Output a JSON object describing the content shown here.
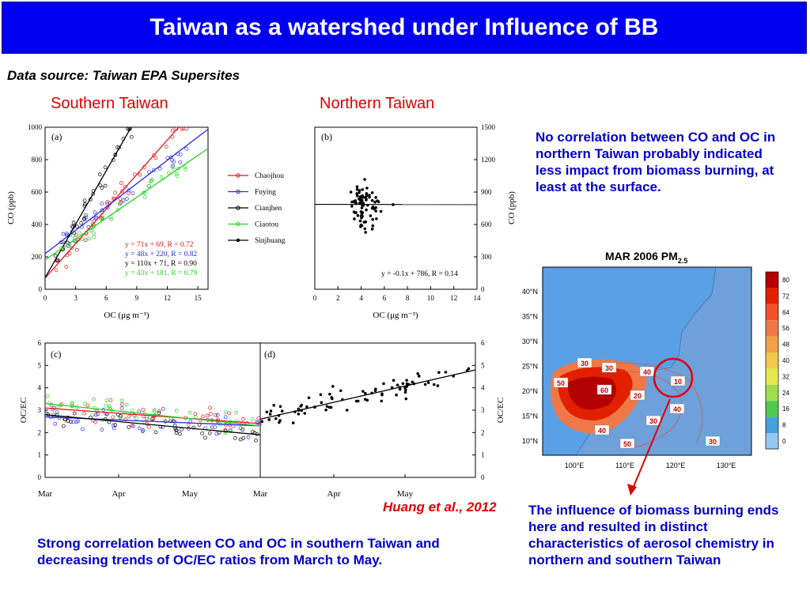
{
  "slide": {
    "title": "Taiwan as a watershed under Influence of BB",
    "data_source": "Data source: Taiwan EPA Supersites",
    "south_label": "Southern Taiwan",
    "north_label": "Northern Taiwan",
    "note_north": "No correlation between CO and OC in northern Taiwan probably indicated less impact from biomass burning, at least at the surface.",
    "note_south": "Strong correlation between CO and OC in southern Taiwan and decreasing trends of OC/EC ratios from March to May.",
    "note_bb": "The influence of biomass burning ends here and resulted in distinct characteristics of aerosol chemistry in northern and southern Taiwan",
    "citation": "Huang et al., 2012"
  },
  "colors": {
    "title_bg": "#0000f0",
    "red": "#e00000",
    "blue_text": "#0000cc",
    "chaojhou": "#e8141c",
    "fuying": "#2828e6",
    "cianjhen": "#000000",
    "ciaotou": "#28d228",
    "sinjhuang": "#000000"
  },
  "chart_data": [
    {
      "panel_label": "(a)",
      "type": "scatter",
      "xlabel": "OC  (μg m⁻³)",
      "ylabel": "CO  (ppb)",
      "xlim": [
        0,
        16
      ],
      "ylim": [
        0,
        1000
      ],
      "xticks": [
        "0",
        "3",
        "6",
        "9",
        "12",
        "15"
      ],
      "yticks": [
        "0",
        "200",
        "400",
        "600",
        "800",
        "1000"
      ],
      "legend": [
        "Chaojhou",
        "Fuying",
        "Cianjhen",
        "Ciaotou",
        "Sinjhuang"
      ],
      "legend_placement": "right",
      "fits": [
        {
          "series": "Chaojhou",
          "label": "y = 71x + 69, R = 0.72",
          "slope": 71,
          "intercept": 69
        },
        {
          "series": "Fuying",
          "label": "y = 48x + 220, R = 0.82",
          "slope": 48,
          "intercept": 220
        },
        {
          "series": "Cianjhen",
          "label": "y = 110x + 71, R = 0.90",
          "slope": 110,
          "intercept": 71
        },
        {
          "series": "Ciaotou",
          "label": "y = 43x + 181, R = 0.79",
          "slope": 43,
          "intercept": 181
        }
      ]
    },
    {
      "panel_label": "(b)",
      "type": "scatter",
      "xlabel": "OC  (μg m⁻³)",
      "ylabel": "CO  (ppb)",
      "xlim": [
        0,
        14
      ],
      "ylim": [
        0,
        1500
      ],
      "xticks": [
        "0",
        "2",
        "4",
        "6",
        "8",
        "10",
        "12",
        "14"
      ],
      "yticks": [
        "0",
        "300",
        "600",
        "900",
        "1200",
        "1500"
      ],
      "fits": [
        {
          "series": "Sinjhuang",
          "label": "y = -0.1x + 786, R = 0.14",
          "slope": -0.1,
          "intercept": 786
        }
      ]
    },
    {
      "panel_label": "(c)",
      "type": "scatter",
      "ylabel": "OC/EC",
      "ylim": [
        0,
        6
      ],
      "yticks": [
        "0",
        "1",
        "2",
        "3",
        "4",
        "5",
        "6"
      ],
      "xticks": [
        "Mar",
        "Apr",
        "May"
      ],
      "trend_start": {
        "Chaojhou": 3.1,
        "Fuying": 2.7,
        "Cianjhen": 2.8,
        "Ciaotou": 3.3
      },
      "trend_end": {
        "Chaojhou": 2.4,
        "Fuying": 2.3,
        "Cianjhen": 1.9,
        "Ciaotou": 2.3
      }
    },
    {
      "panel_label": "(d)",
      "type": "scatter",
      "ylabel": "OC/EC",
      "ylim": [
        0,
        6
      ],
      "yticks": [
        "0",
        "1",
        "2",
        "3",
        "4",
        "5",
        "6"
      ],
      "xticks": [
        "Mar",
        "Apr",
        "May"
      ],
      "trend_start": {
        "Sinjhuang": 2.6
      },
      "trend_end": {
        "Sinjhuang": 4.8
      }
    },
    {
      "type": "heatmap",
      "title": "MAR 2006 PM",
      "title_sub": "2.5",
      "lat_labels": [
        "40°N",
        "35°N",
        "30°N",
        "25°N",
        "20°N",
        "15°N",
        "10°N"
      ],
      "lon_labels": [
        "100°E",
        "110°E",
        "120°E",
        "130°E"
      ],
      "colorbar": [
        "80",
        "72",
        "64",
        "56",
        "48",
        "40",
        "32",
        "24",
        "16",
        "8",
        "0"
      ],
      "colorbar_colors": [
        "#b40000",
        "#e02000",
        "#f05028",
        "#f07846",
        "#f0a046",
        "#f0c850",
        "#e6e650",
        "#a0dc50",
        "#50c850",
        "#46a0dc",
        "#96c8f0"
      ],
      "contour_labels": [
        "30",
        "30",
        "50",
        "60",
        "40",
        "20",
        "30",
        "10",
        "40",
        "50",
        "30",
        "40"
      ]
    }
  ]
}
